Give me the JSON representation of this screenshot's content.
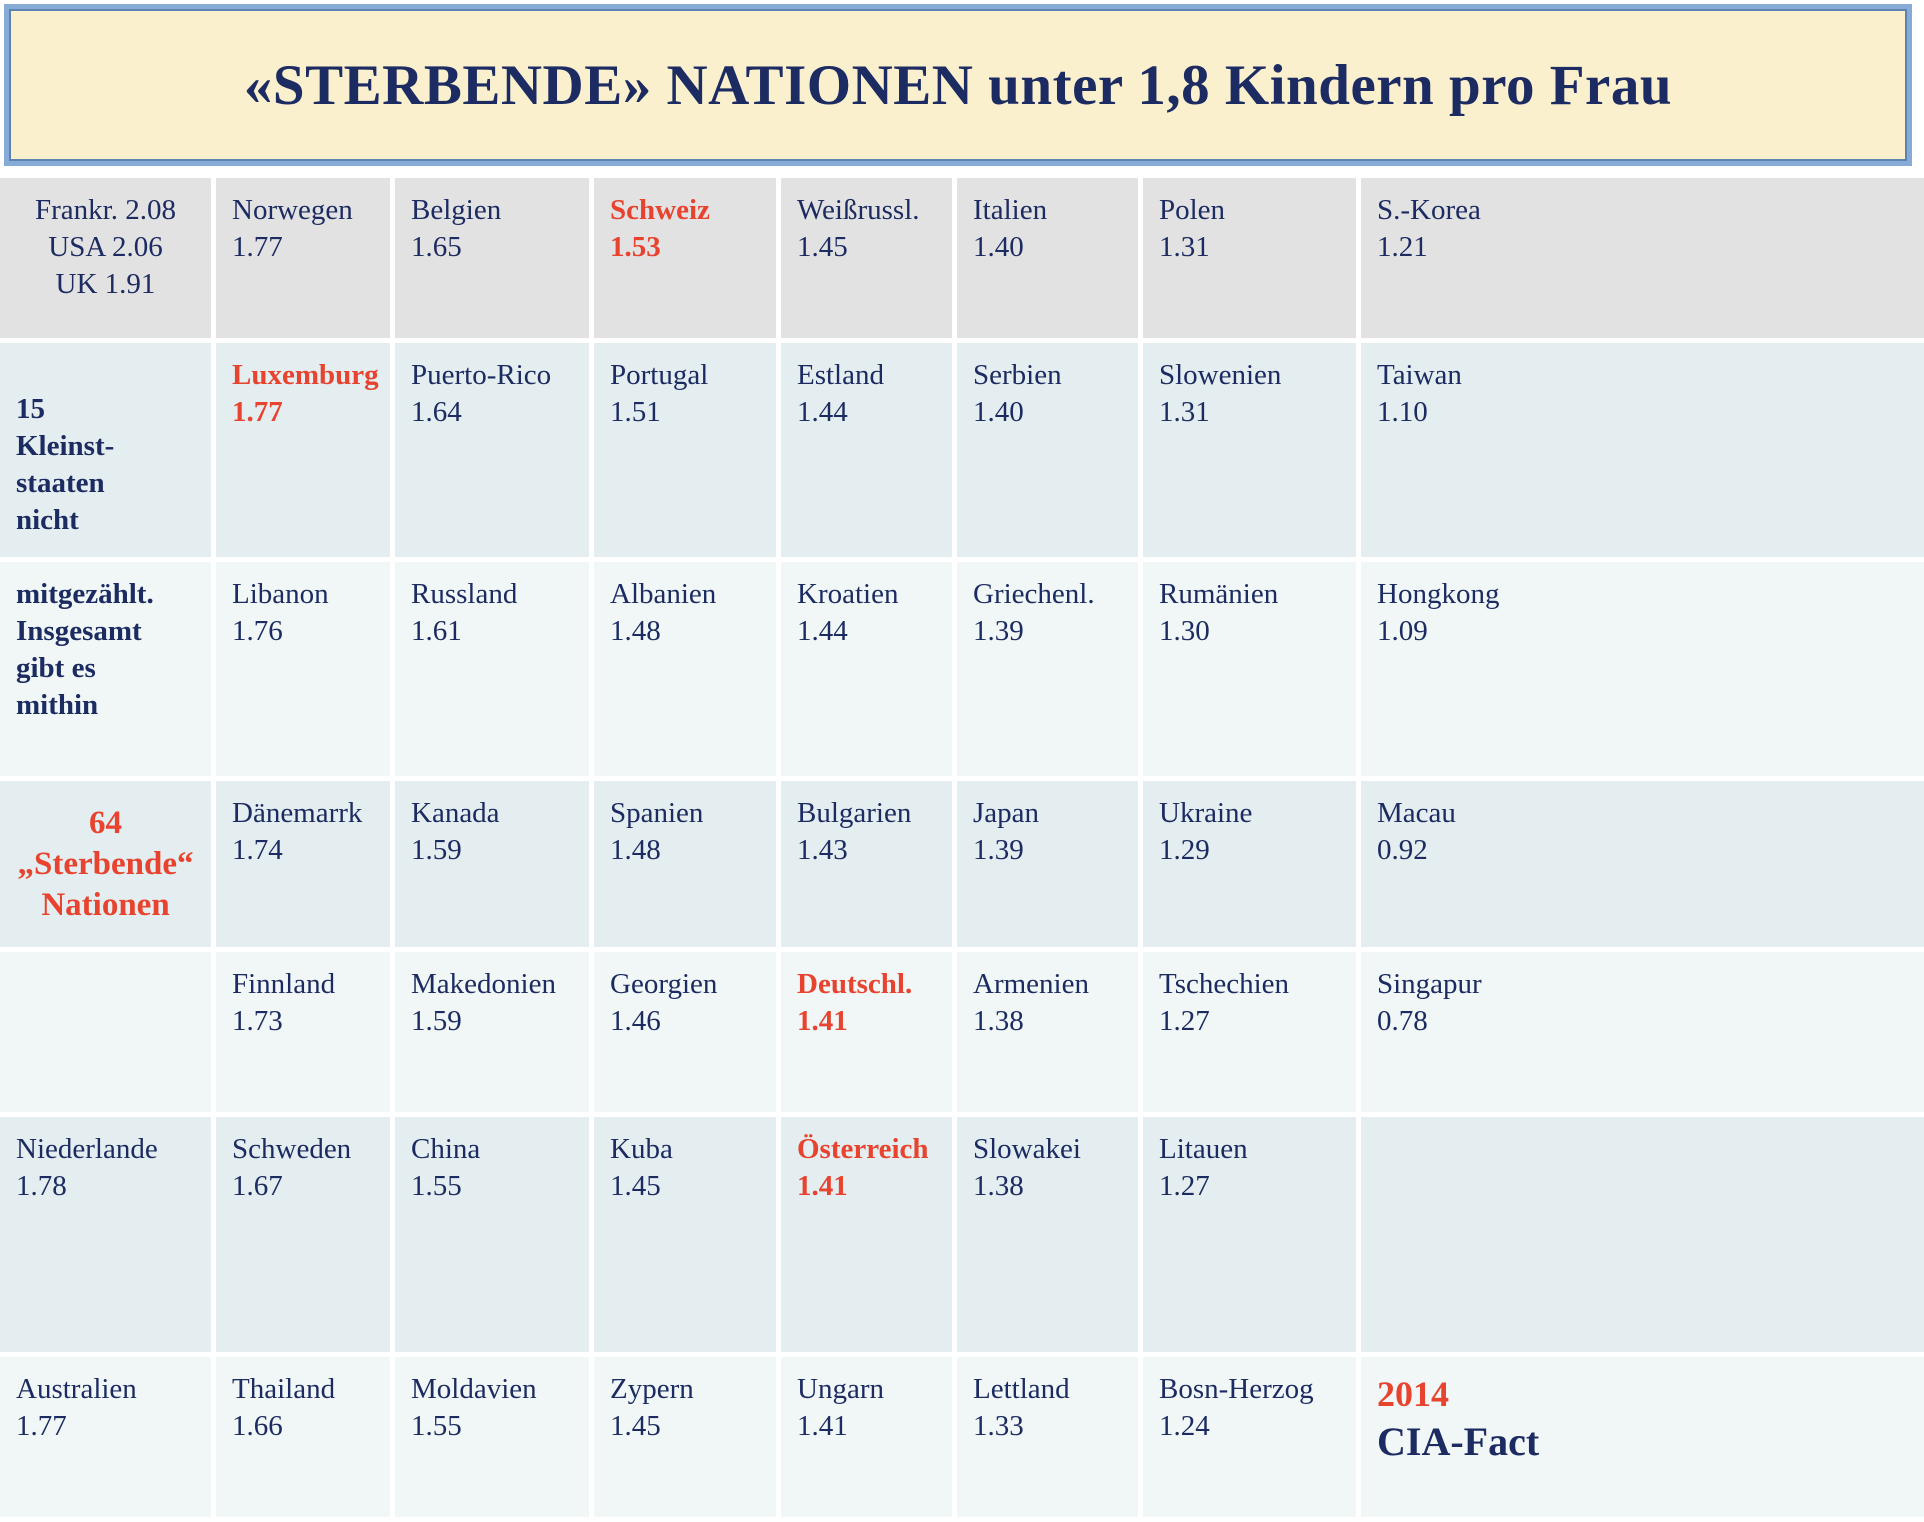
{
  "title": "«STERBENDE» NATIONEN unter 1,8 Kindern pro Frau",
  "colors": {
    "title_background": "#faf0ce",
    "title_border": "#86abd6",
    "navy_text": "#1c2b61",
    "red_highlight": "#e7432e",
    "row_gray": "#e3e2e2",
    "row_blue": "#e4edf0",
    "row_light": "#f1f7f7"
  },
  "table": {
    "row_styles": [
      "gray",
      "blue",
      "light",
      "blue",
      "light",
      "blue",
      "light"
    ],
    "rows": [
      {
        "cells": [
          {
            "lines": [
              "Frankr.  2.08",
              "USA 2.06",
              "UK 1.91"
            ],
            "center": true,
            "name": "cell-reference-nations"
          },
          {
            "lines": [
              "Norwegen",
              "1.77"
            ]
          },
          {
            "lines": [
              "Belgien",
              "1.65"
            ]
          },
          {
            "lines": [
              "Schweiz",
              "1.53"
            ],
            "cls": "red"
          },
          {
            "lines": [
              "Weißrussl.",
              "1.45"
            ]
          },
          {
            "lines": [
              "Italien",
              "1.40"
            ]
          },
          {
            "lines": [
              "Polen",
              "1.31"
            ]
          },
          {
            "lines": [
              "S.-Korea",
              "1.21"
            ]
          }
        ]
      },
      {
        "cells": [
          {
            "lines": [
              "15",
              "Kleinst-",
              "staaten",
              "nicht"
            ],
            "bold": true,
            "padtop": true,
            "name": "cell-note-part1"
          },
          {
            "lines": [
              "Luxemburg",
              "1.77"
            ],
            "cls": "red"
          },
          {
            "lines": [
              "Puerto-Rico",
              "1.64"
            ]
          },
          {
            "lines": [
              "Portugal",
              "1.51"
            ]
          },
          {
            "lines": [
              "Estland",
              "1.44"
            ]
          },
          {
            "lines": [
              "Serbien",
              "1.40"
            ]
          },
          {
            "lines": [
              "Slowenien",
              "1.31"
            ]
          },
          {
            "lines": [
              "Taiwan",
              "1.10"
            ]
          }
        ]
      },
      {
        "cells": [
          {
            "lines": [
              "mitgezählt.",
              "Insgesamt",
              "gibt es",
              "mithin"
            ],
            "bold": true,
            "name": "cell-note-part2"
          },
          {
            "lines": [
              "Libanon",
              "1.76"
            ]
          },
          {
            "lines": [
              "Russland",
              "1.61"
            ]
          },
          {
            "lines": [
              "Albanien",
              "1.48"
            ]
          },
          {
            "lines": [
              "Kroatien",
              "1.44"
            ]
          },
          {
            "lines": [
              "Griechenl.",
              "1.39"
            ]
          },
          {
            "lines": [
              "Rumänien",
              "1.30"
            ]
          },
          {
            "lines": [
              "Hongkong",
              "1.09"
            ]
          }
        ]
      },
      {
        "cells": [
          {
            "lines": [
              "64",
              "„Sterbende“",
              "Nationen"
            ],
            "cls": "red",
            "center": true,
            "big": true,
            "vmid": true,
            "name": "cell-note-part3"
          },
          {
            "lines": [
              "Dänemarrk",
              "1.74"
            ]
          },
          {
            "lines": [
              "Kanada",
              "1.59"
            ]
          },
          {
            "lines": [
              "Spanien",
              "1.48"
            ]
          },
          {
            "lines": [
              "Bulgarien",
              "1.43"
            ]
          },
          {
            "lines": [
              "Japan",
              "1.39"
            ]
          },
          {
            "lines": [
              "Ukraine",
              "1.29"
            ]
          },
          {
            "lines": [
              "Macau",
              "0.92"
            ]
          }
        ]
      },
      {
        "cells": [
          {
            "lines": [],
            "name": "cell-empty"
          },
          {
            "lines": [
              "Finnland",
              "1.73"
            ]
          },
          {
            "lines": [
              "Makedonien",
              "1.59"
            ]
          },
          {
            "lines": [
              "Georgien",
              "1.46"
            ]
          },
          {
            "lines": [
              "Deutschl.",
              "1.41"
            ],
            "cls": "red"
          },
          {
            "lines": [
              "Armenien",
              "1.38"
            ]
          },
          {
            "lines": [
              "Tschechien",
              "1.27"
            ]
          },
          {
            "lines": [
              "Singapur",
              "0.78"
            ]
          }
        ]
      },
      {
        "cells": [
          {
            "lines": [
              "Niederlande",
              "1.78"
            ]
          },
          {
            "lines": [
              "Schweden",
              "1.67"
            ]
          },
          {
            "lines": [
              "China",
              "1.55"
            ]
          },
          {
            "lines": [
              "Kuba",
              "1.45"
            ]
          },
          {
            "lines": [
              "Österreich",
              "1.41"
            ],
            "cls": "red"
          },
          {
            "lines": [
              "Slowakei",
              "1.38"
            ]
          },
          {
            "lines": [
              "Litauen",
              "1.27"
            ]
          },
          {
            "lines": [],
            "name": "cell-empty"
          }
        ]
      },
      {
        "cells": [
          {
            "lines": [
              "Australien",
              "1.77"
            ]
          },
          {
            "lines": [
              "Thailand",
              "1.66"
            ]
          },
          {
            "lines": [
              "Moldavien",
              "1.55"
            ]
          },
          {
            "lines": [
              "Zypern",
              "1.45"
            ]
          },
          {
            "lines": [
              "Ungarn",
              "1.41"
            ]
          },
          {
            "lines": [
              "Lettland",
              "1.33"
            ]
          },
          {
            "lines": [
              "Bosn-Herzog",
              "1.24"
            ]
          },
          {
            "lines": [
              {
                "text": "2014",
                "cls": "source-year"
              },
              {
                "text": "CIA-Fact",
                "cls": "source-name"
              }
            ],
            "name": "cell-source"
          }
        ]
      }
    ]
  },
  "chart_data": {
    "type": "table",
    "title": "«STERBENDE» NATIONEN unter 1,8 Kindern pro Frau",
    "unit": "Kinder pro Frau",
    "threshold": 1.8,
    "reference_above_threshold": [
      {
        "country": "Frankr.",
        "value": 2.08
      },
      {
        "country": "USA",
        "value": 2.06
      },
      {
        "country": "UK",
        "value": 1.91
      }
    ],
    "entries": [
      {
        "country": "Niederlande",
        "value": 1.78
      },
      {
        "country": "Norwegen",
        "value": 1.77
      },
      {
        "country": "Luxemburg",
        "value": 1.77
      },
      {
        "country": "Australien",
        "value": 1.77
      },
      {
        "country": "Libanon",
        "value": 1.76
      },
      {
        "country": "Dänemarrk",
        "value": 1.74
      },
      {
        "country": "Finnland",
        "value": 1.73
      },
      {
        "country": "Schweden",
        "value": 1.67
      },
      {
        "country": "Thailand",
        "value": 1.66
      },
      {
        "country": "Belgien",
        "value": 1.65
      },
      {
        "country": "Puerto-Rico",
        "value": 1.64
      },
      {
        "country": "Russland",
        "value": 1.61
      },
      {
        "country": "Kanada",
        "value": 1.59
      },
      {
        "country": "Makedonien",
        "value": 1.59
      },
      {
        "country": "China",
        "value": 1.55
      },
      {
        "country": "Moldavien",
        "value": 1.55
      },
      {
        "country": "Schweiz",
        "value": 1.53
      },
      {
        "country": "Portugal",
        "value": 1.51
      },
      {
        "country": "Albanien",
        "value": 1.48
      },
      {
        "country": "Spanien",
        "value": 1.48
      },
      {
        "country": "Georgien",
        "value": 1.46
      },
      {
        "country": "Weißrussl.",
        "value": 1.45
      },
      {
        "country": "Kuba",
        "value": 1.45
      },
      {
        "country": "Zypern",
        "value": 1.45
      },
      {
        "country": "Estland",
        "value": 1.44
      },
      {
        "country": "Kroatien",
        "value": 1.44
      },
      {
        "country": "Bulgarien",
        "value": 1.43
      },
      {
        "country": "Deutschl.",
        "value": 1.41
      },
      {
        "country": "Österreich",
        "value": 1.41
      },
      {
        "country": "Ungarn",
        "value": 1.41
      },
      {
        "country": "Italien",
        "value": 1.4
      },
      {
        "country": "Serbien",
        "value": 1.4
      },
      {
        "country": "Griechenl.",
        "value": 1.39
      },
      {
        "country": "Japan",
        "value": 1.39
      },
      {
        "country": "Armenien",
        "value": 1.38
      },
      {
        "country": "Slowakei",
        "value": 1.38
      },
      {
        "country": "Lettland",
        "value": 1.33
      },
      {
        "country": "Polen",
        "value": 1.31
      },
      {
        "country": "Slowenien",
        "value": 1.31
      },
      {
        "country": "Rumänien",
        "value": 1.3
      },
      {
        "country": "Ukraine",
        "value": 1.29
      },
      {
        "country": "Tschechien",
        "value": 1.27
      },
      {
        "country": "Litauen",
        "value": 1.27
      },
      {
        "country": "Bosn-Herzog",
        "value": 1.24
      },
      {
        "country": "S.-Korea",
        "value": 1.21
      },
      {
        "country": "Taiwan",
        "value": 1.1
      },
      {
        "country": "Hongkong",
        "value": 1.09
      },
      {
        "country": "Macau",
        "value": 0.92
      },
      {
        "country": "Singapur",
        "value": 0.78
      }
    ],
    "highlighted_red": [
      "Schweiz",
      "Luxemburg",
      "Deutschl.",
      "Österreich"
    ],
    "note": "15 Kleinststaaten nicht mitgezählt. Insgesamt gibt es mithin 64 „Sterbende“ Nationen",
    "source": "2014 CIA-Fact"
  }
}
